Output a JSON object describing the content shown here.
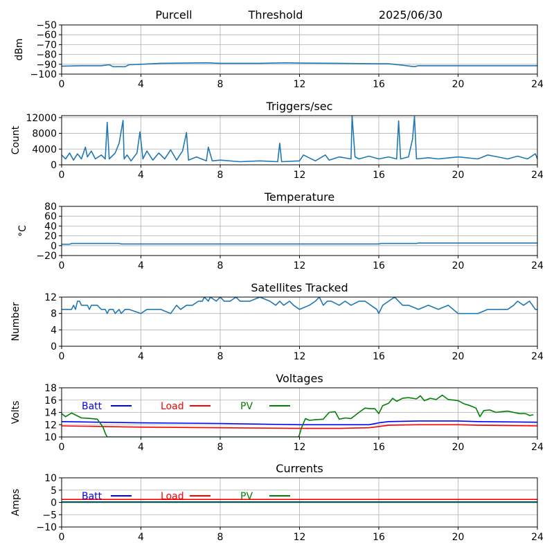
{
  "header": {
    "station": "Purcell",
    "mode": "Threshold",
    "date": "2025/06/30"
  },
  "chart_data": [
    {
      "type": "line",
      "title": "",
      "xlabel": "",
      "ylabel": "dBm",
      "xlim": [
        0,
        24
      ],
      "ylim": [
        -100,
        -50
      ],
      "xticks": [
        0,
        4,
        8,
        12,
        16,
        20,
        24
      ],
      "yticks": [
        -100,
        -90,
        -80,
        -70,
        -60,
        -50
      ],
      "grid": true,
      "series": [
        {
          "color": "#1f77b4",
          "x": [
            0,
            1,
            2,
            2.4,
            2.6,
            3.2,
            3.4,
            4,
            5,
            7.3,
            8,
            10,
            11.3,
            12,
            14,
            16,
            16.5,
            17.2,
            17.8,
            18,
            20,
            24
          ],
          "y": [
            -92,
            -91.5,
            -91.5,
            -90.5,
            -92.5,
            -92.5,
            -90.5,
            -90,
            -89,
            -88.5,
            -89,
            -89,
            -88.5,
            -88.8,
            -89,
            -89.5,
            -89.5,
            -91,
            -92.5,
            -91.5,
            -91.5,
            -91.5
          ]
        }
      ]
    },
    {
      "type": "line",
      "title": "Triggers/sec",
      "xlabel": "",
      "ylabel": "Count",
      "xlim": [
        0,
        24
      ],
      "ylim": [
        0,
        12500
      ],
      "xticks": [
        0,
        4,
        8,
        12,
        16,
        20,
        24
      ],
      "yticks": [
        0,
        4000,
        8000,
        12000
      ],
      "grid": true,
      "series": [
        {
          "color": "#1f77b4",
          "x": [
            0,
            0.2,
            0.4,
            0.6,
            0.8,
            1.0,
            1.2,
            1.3,
            1.5,
            1.7,
            2.0,
            2.2,
            2.3,
            2.4,
            2.7,
            2.9,
            3.1,
            3.15,
            3.3,
            3.5,
            3.8,
            3.95,
            4.1,
            4.3,
            4.6,
            4.9,
            5.2,
            5.5,
            5.8,
            6.1,
            6.3,
            6.4,
            6.8,
            7.3,
            7.4,
            7.6,
            8,
            9,
            10,
            10.9,
            11.0,
            11.1,
            12,
            12.2,
            12.8,
            13.3,
            13.5,
            14,
            14.6,
            14.65,
            14.8,
            15,
            15.5,
            16,
            16.5,
            16.9,
            17.0,
            17.1,
            17.5,
            17.7,
            17.8,
            17.9,
            18.5,
            19,
            20,
            21,
            21.5,
            22,
            22.5,
            23,
            23.5,
            23.9,
            24
          ],
          "y": [
            2500,
            1500,
            3000,
            1200,
            2800,
            1500,
            4500,
            2000,
            3500,
            1500,
            2500,
            1500,
            10800,
            1500,
            3000,
            5500,
            11300,
            1500,
            2500,
            1000,
            3000,
            8400,
            1500,
            3500,
            1200,
            3000,
            1500,
            3800,
            1200,
            3500,
            8200,
            1200,
            2000,
            1000,
            4500,
            1000,
            1200,
            800,
            1000,
            800,
            5500,
            800,
            1000,
            2500,
            1000,
            2500,
            1200,
            2000,
            1500,
            12500,
            2000,
            1500,
            2200,
            1500,
            2000,
            1500,
            11200,
            1500,
            2000,
            6500,
            12300,
            1500,
            1800,
            1500,
            2000,
            1500,
            2500,
            2000,
            1500,
            2200,
            1500,
            2800,
            1500
          ]
        }
      ]
    },
    {
      "type": "line",
      "title": "Temperature",
      "xlabel": "",
      "ylabel": "°C",
      "xlim": [
        0,
        24
      ],
      "ylim": [
        -20,
        80
      ],
      "xticks": [
        0,
        4,
        8,
        12,
        16,
        20,
        24
      ],
      "yticks": [
        -20,
        0,
        20,
        40,
        60,
        80
      ],
      "grid": true,
      "series": [
        {
          "color": "#1f77b4",
          "x": [
            0,
            0.4,
            0.5,
            2.9,
            3.0,
            16.0,
            16.1,
            17.9,
            18.0,
            24
          ],
          "y": [
            3,
            3,
            4.5,
            4.5,
            3.5,
            3.5,
            4.5,
            4.5,
            5.5,
            5.5
          ]
        }
      ]
    },
    {
      "type": "line",
      "title": "Satellites Tracked",
      "xlabel": "",
      "ylabel": "Number",
      "xlim": [
        0,
        24
      ],
      "ylim": [
        0,
        12
      ],
      "xticks": [
        0,
        4,
        8,
        12,
        16,
        20,
        24
      ],
      "yticks": [
        0,
        4,
        8,
        12
      ],
      "grid": true,
      "series": [
        {
          "color": "#1f77b4",
          "x": [
            0,
            0.5,
            0.6,
            0.7,
            0.8,
            0.9,
            1.0,
            1.3,
            1.4,
            1.5,
            1.8,
            2.0,
            2.2,
            2.3,
            2.4,
            2.6,
            2.7,
            2.9,
            3.0,
            3.2,
            3.3,
            3.4,
            4.0,
            4.3,
            5.0,
            5.5,
            5.8,
            6.0,
            6.3,
            6.6,
            6.9,
            7.1,
            7.2,
            7.4,
            7.5,
            7.8,
            8.0,
            8.2,
            8.5,
            8.8,
            9.0,
            9.5,
            10.0,
            10.5,
            10.8,
            11.0,
            11.2,
            11.5,
            11.7,
            12.0,
            12.5,
            12.8,
            13.0,
            13.2,
            13.4,
            13.6,
            14.0,
            14.3,
            14.6,
            15.0,
            15.3,
            15.6,
            15.9,
            16.0,
            16.2,
            16.5,
            16.8,
            17.0,
            17.2,
            17.5,
            18.0,
            18.5,
            19.0,
            19.5,
            20.0,
            20.5,
            21.0,
            21.5,
            22.0,
            22.5,
            22.8,
            23.0,
            23.3,
            23.6,
            23.9,
            24
          ],
          "y": [
            9,
            9,
            10,
            9,
            11,
            11,
            10,
            10,
            9,
            10,
            10,
            9,
            9,
            8,
            9,
            9,
            8,
            9,
            8,
            9,
            9,
            9,
            8,
            9,
            9,
            8,
            10,
            9,
            10,
            10,
            11,
            11,
            12,
            11,
            12,
            11,
            12,
            11,
            11,
            12,
            11,
            11,
            12,
            11,
            10,
            11,
            10,
            11,
            10,
            9,
            10,
            11,
            12,
            10,
            11,
            11,
            10,
            11,
            10,
            11,
            11,
            10,
            9,
            8,
            10,
            11,
            12,
            11,
            10,
            10,
            9,
            10,
            9,
            10,
            8,
            8,
            8,
            9,
            9,
            9,
            10,
            11,
            10,
            11,
            9,
            9
          ]
        }
      ]
    },
    {
      "type": "line",
      "title": "Voltages",
      "xlabel": "",
      "ylabel": "Volts",
      "xlim": [
        0,
        24
      ],
      "ylim": [
        10,
        18
      ],
      "xticks": [
        0,
        4,
        8,
        12,
        16,
        20,
        24
      ],
      "yticks": [
        10,
        12,
        14,
        16,
        18
      ],
      "grid": true,
      "legend": "top-left, inline",
      "series": [
        {
          "name": "Batt",
          "color": "#0000ff",
          "x": [
            0,
            4,
            8,
            12,
            14,
            15.5,
            16,
            16.5,
            18,
            20,
            21,
            24
          ],
          "y": [
            12.5,
            12.3,
            12.2,
            12.0,
            12.0,
            12.0,
            12.3,
            12.5,
            12.6,
            12.6,
            12.5,
            12.4
          ]
        },
        {
          "name": "Load",
          "color": "#ff0000",
          "x": [
            0,
            4,
            8,
            12,
            14,
            15.5,
            16,
            16.5,
            18,
            20,
            21,
            24
          ],
          "y": [
            11.8,
            11.6,
            11.5,
            11.4,
            11.4,
            11.5,
            11.7,
            11.9,
            12.0,
            12.0,
            11.9,
            11.8
          ]
        },
        {
          "name": "PV",
          "color": "#008000",
          "x": [
            0,
            0.2,
            0.5,
            1.0,
            1.5,
            1.8,
            2.0,
            2.1,
            2.2,
            2.3,
            11.95,
            12.0,
            12.1,
            12.3,
            12.5,
            12.8,
            13.2,
            13.5,
            13.8,
            14.0,
            14.3,
            14.6,
            15.0,
            15.3,
            15.6,
            15.8,
            16.0,
            16.2,
            16.5,
            16.7,
            16.9,
            17.2,
            17.5,
            17.9,
            18.1,
            18.3,
            18.6,
            18.9,
            19.2,
            19.5,
            19.8,
            20.0,
            20.3,
            20.6,
            20.9,
            21.1,
            21.3,
            21.6,
            21.9,
            22.2,
            22.5,
            22.8,
            23.1,
            23.4,
            23.6,
            23.8
          ],
          "y": [
            13.8,
            13.3,
            13.9,
            13.1,
            13.0,
            12.9,
            12.0,
            11.5,
            10.6,
            10.0,
            10.0,
            10.4,
            11.5,
            13.0,
            12.7,
            12.8,
            12.9,
            14.0,
            14.1,
            12.9,
            13.1,
            13.0,
            14.0,
            14.7,
            14.6,
            14.6,
            13.8,
            15.1,
            15.5,
            16.3,
            15.8,
            16.3,
            16.4,
            16.2,
            16.7,
            15.9,
            16.3,
            16.1,
            16.8,
            16.1,
            16.0,
            15.9,
            15.4,
            15.1,
            14.7,
            13.3,
            14.3,
            14.4,
            14.0,
            14.1,
            14.2,
            14.0,
            13.8,
            13.8,
            13.5,
            13.6
          ]
        }
      ]
    },
    {
      "type": "line",
      "title": "Currents",
      "xlabel": "",
      "ylabel": "Amps",
      "xlim": [
        0,
        24
      ],
      "ylim": [
        -10,
        10
      ],
      "xticks": [
        0,
        4,
        8,
        12,
        16,
        20,
        24
      ],
      "yticks": [
        -10,
        -5,
        0,
        5,
        10
      ],
      "grid": true,
      "legend": "top-left, inline",
      "series": [
        {
          "name": "Batt",
          "color": "#0000ff",
          "x": [
            0,
            24
          ],
          "y": [
            0.2,
            0.2
          ]
        },
        {
          "name": "Load",
          "color": "#ff0000",
          "x": [
            0,
            24
          ],
          "y": [
            1.2,
            1.2
          ]
        },
        {
          "name": "PV",
          "color": "#008000",
          "x": [
            0,
            24
          ],
          "y": [
            0.0,
            0.0
          ]
        }
      ]
    }
  ]
}
